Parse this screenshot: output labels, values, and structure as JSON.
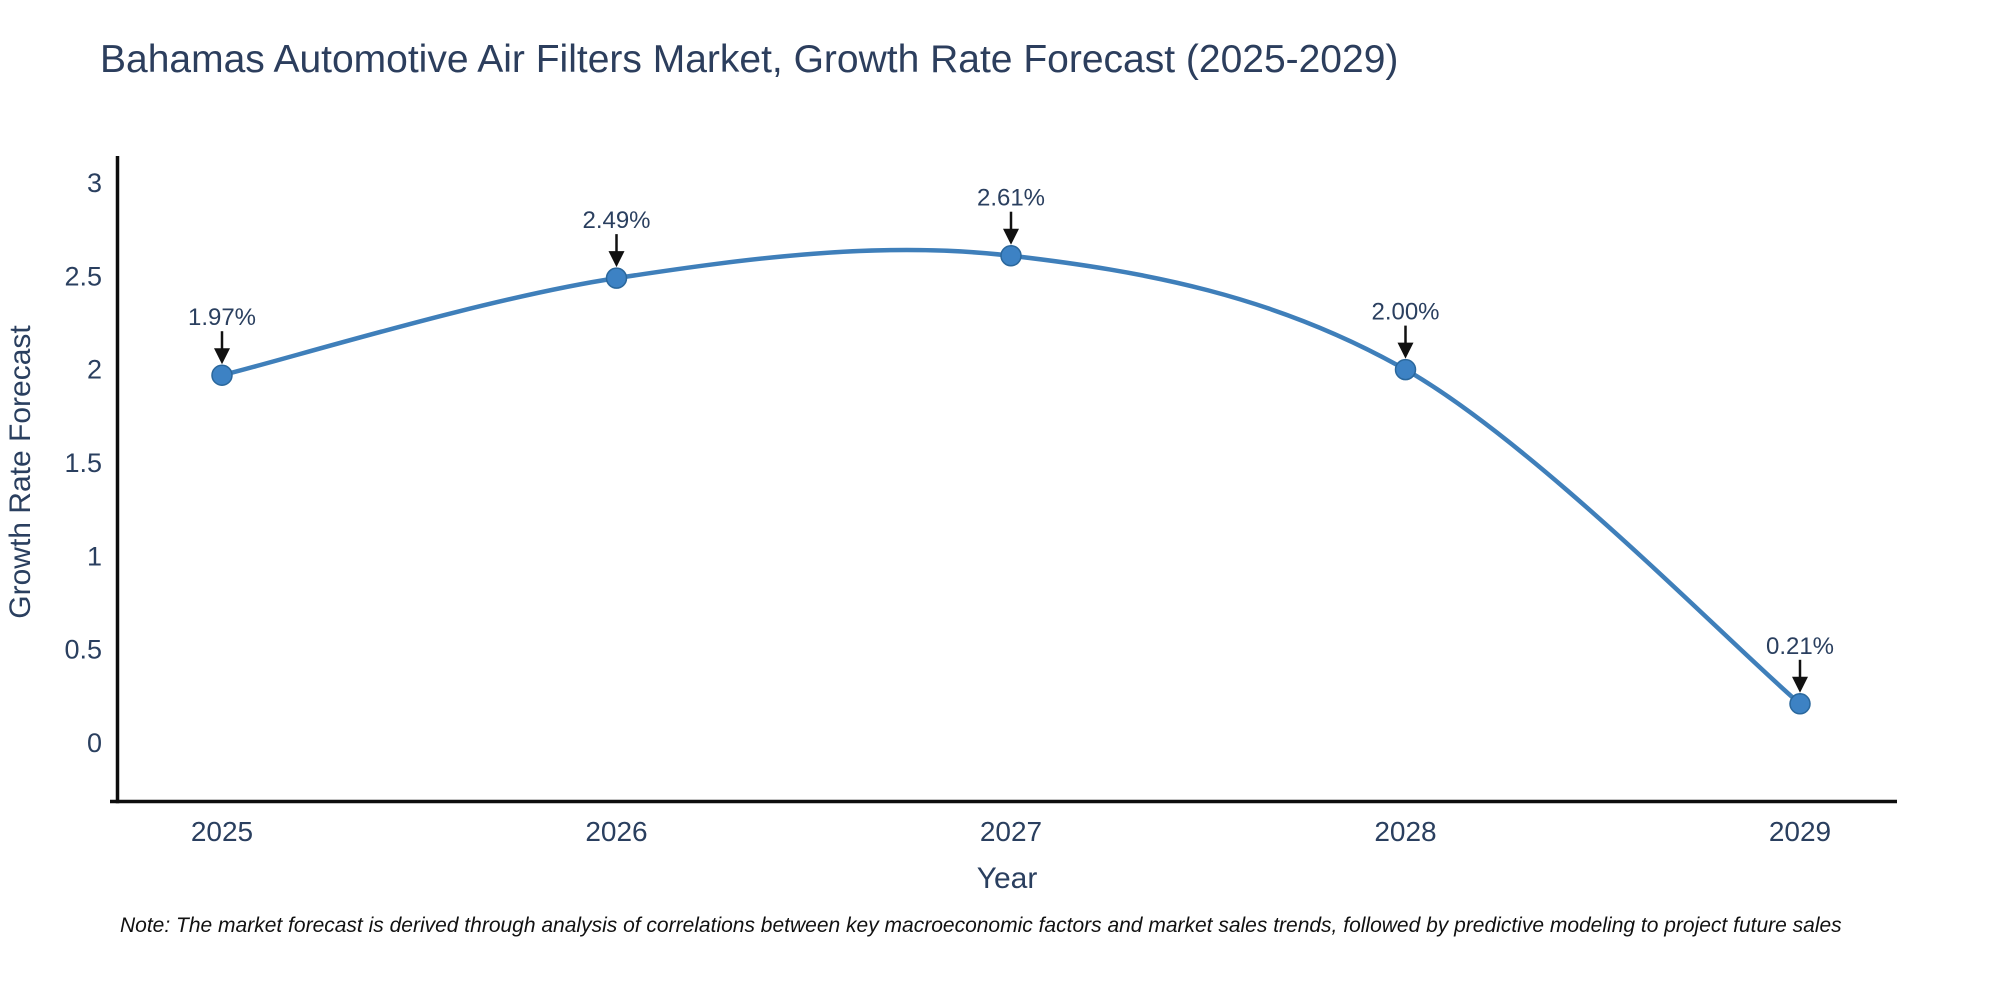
{
  "title": "Bahamas Automotive Air Filters Market, Growth Rate Forecast (2025-2029)",
  "note": "Note: The market forecast is derived through analysis of correlations between key macroeconomic factors and market sales trends, followed by predictive modeling to project future sales",
  "chart_data": {
    "type": "line",
    "title": "Bahamas Automotive Air Filters Market, Growth Rate Forecast (2025-2029)",
    "xlabel": "Year",
    "ylabel": "Growth Rate Forecast",
    "x": [
      2025,
      2026,
      2027,
      2028,
      2029
    ],
    "y": [
      1.97,
      2.49,
      2.61,
      2.0,
      0.21
    ],
    "point_labels": [
      "1.97%",
      "2.49%",
      "2.61%",
      "2.00%",
      "0.21%"
    ],
    "yticks": [
      0,
      0.5,
      1,
      1.5,
      2,
      2.5,
      3
    ],
    "ylim": [
      -0.31,
      3.13
    ],
    "line_shape": "spline",
    "grid": false,
    "legend_position": "none",
    "colors": {
      "line": "#3f7fba",
      "marker_fill": "#3d82c4",
      "marker_edge": "#2a679c",
      "axis_line": "#0d0d0d",
      "tick_text": "#2a3f5f",
      "annotation_text": "#2a3f5f",
      "annotation_arrow": "#111111"
    }
  }
}
